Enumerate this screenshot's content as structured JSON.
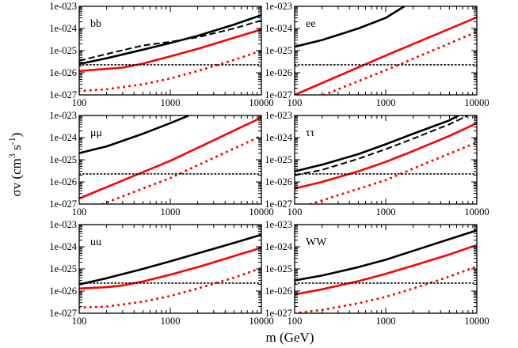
{
  "figure": {
    "xlabel": "m (GeV)",
    "ylabel_main": "σv (cm",
    "ylabel_exp1": "3",
    "ylabel_mid": " s",
    "ylabel_exp2": "-1",
    "ylabel_end": ")"
  },
  "axes": {
    "x_ticks": [
      {
        "value": 100,
        "label": "100"
      },
      {
        "value": 1000,
        "label": "1000"
      },
      {
        "value": 10000,
        "label": "10000"
      }
    ],
    "y_ticks": [
      {
        "value": 1e-27,
        "label": "1e-027"
      },
      {
        "value": 1e-26,
        "label": "1e-026"
      },
      {
        "value": 1e-25,
        "label": "1e-025"
      },
      {
        "value": 1e-24,
        "label": "1e-024"
      },
      {
        "value": 1e-23,
        "label": "1e-023"
      }
    ]
  },
  "chart_data": [
    {
      "type": "line",
      "title": "bb",
      "xscale": "log",
      "yscale": "log",
      "xlim": [
        100,
        10000
      ],
      "ylim": [
        1e-27,
        1e-23
      ],
      "xlabel": "m (GeV)",
      "ylabel": "σv (cm^3 s^-1)",
      "series": [
        {
          "name": "black solid",
          "color": "#000000",
          "dash": "solid",
          "x": [
            100,
            200,
            500,
            1000,
            2000,
            5000,
            10000
          ],
          "y": [
            2.5e-26,
            4.5e-26,
            1.1e-25,
            2.2e-25,
            4.7e-25,
            1.5e-24,
            4e-24
          ]
        },
        {
          "name": "black dashed",
          "color": "#000000",
          "dash": "dashed",
          "x": [
            100,
            200,
            500,
            1000,
            2000,
            5000,
            10000
          ],
          "y": [
            3.5e-26,
            7e-26,
            1.7e-25,
            2.5e-25,
            4e-25,
            1e-24,
            2.3e-24
          ]
        },
        {
          "name": "red solid",
          "color": "#ff0000",
          "dash": "solid",
          "x": [
            100,
            200,
            300,
            500,
            1000,
            2000,
            5000,
            10000
          ],
          "y": [
            1.2e-26,
            1.5e-26,
            1.7e-26,
            2.6e-26,
            5.5e-26,
            1.2e-25,
            3.8e-25,
            9e-25
          ]
        },
        {
          "name": "red dotted",
          "color": "#ff0000",
          "dash": "dotted",
          "x": [
            100,
            200,
            500,
            1000,
            2000,
            5000,
            10000
          ],
          "y": [
            1.5e-27,
            1.8e-27,
            3e-27,
            5.5e-27,
            1.2e-26,
            3.8e-26,
            1e-25
          ]
        },
        {
          "name": "black dotted",
          "color": "#000000",
          "dash": "dotted",
          "x": [
            100,
            10000
          ],
          "y": [
            2.3e-26,
            2.3e-26
          ]
        }
      ]
    },
    {
      "type": "line",
      "title": "ee",
      "xscale": "log",
      "yscale": "log",
      "xlim": [
        100,
        10000
      ],
      "ylim": [
        1e-27,
        1e-23
      ],
      "xlabel": "m (GeV)",
      "ylabel": "σv (cm^3 s^-1)",
      "series": [
        {
          "name": "black solid",
          "color": "#000000",
          "dash": "solid",
          "x": [
            100,
            200,
            500,
            1000,
            1600
          ],
          "y": [
            1.5e-25,
            3e-25,
            1e-24,
            3e-24,
            1e-23
          ]
        },
        {
          "name": "red solid",
          "color": "#ff0000",
          "dash": "solid",
          "x": [
            100,
            1000,
            10000
          ],
          "y": [
            1e-27,
            6e-26,
            3.2e-24
          ]
        },
        {
          "name": "red dotted",
          "color": "#ff0000",
          "dash": "dotted",
          "x": [
            210,
            1000,
            10000
          ],
          "y": [
            1e-27,
            1.3e-26,
            7e-25
          ]
        },
        {
          "name": "black dotted",
          "color": "#000000",
          "dash": "dotted",
          "x": [
            100,
            10000
          ],
          "y": [
            2.3e-26,
            2.3e-26
          ]
        }
      ]
    },
    {
      "type": "line",
      "title": "μμ",
      "xscale": "log",
      "yscale": "log",
      "xlim": [
        100,
        10000
      ],
      "ylim": [
        1e-27,
        1e-23
      ],
      "xlabel": "m (GeV)",
      "ylabel": "σv (cm^3 s^-1)",
      "series": [
        {
          "name": "black solid",
          "color": "#000000",
          "dash": "solid",
          "x": [
            100,
            200,
            500,
            1000,
            1600
          ],
          "y": [
            2e-25,
            4e-25,
            1.5e-24,
            4.5e-24,
            1e-23
          ]
        },
        {
          "name": "red solid",
          "color": "#ff0000",
          "dash": "solid",
          "x": [
            100,
            1000,
            10000
          ],
          "y": [
            1.8e-27,
            9e-26,
            8e-24
          ]
        },
        {
          "name": "red dotted",
          "color": "#ff0000",
          "dash": "dotted",
          "x": [
            180,
            1000,
            10000
          ],
          "y": [
            1e-27,
            1.5e-26,
            1.2e-24
          ]
        },
        {
          "name": "black dotted",
          "color": "#000000",
          "dash": "dotted",
          "x": [
            100,
            10000
          ],
          "y": [
            2.3e-26,
            2.3e-26
          ]
        }
      ]
    },
    {
      "type": "line",
      "title": "ττ",
      "xscale": "log",
      "yscale": "log",
      "xlim": [
        100,
        10000
      ],
      "ylim": [
        1e-27,
        1e-23
      ],
      "xlabel": "m (GeV)",
      "ylabel": "σv (cm^3 s^-1)",
      "series": [
        {
          "name": "black solid",
          "color": "#000000",
          "dash": "solid",
          "x": [
            100,
            200,
            500,
            1000,
            2000,
            5000,
            6300
          ],
          "y": [
            3e-26,
            6e-26,
            1.8e-25,
            5e-25,
            1.5e-24,
            6e-24,
            1e-23
          ]
        },
        {
          "name": "black dashed",
          "color": "#000000",
          "dash": "dashed",
          "x": [
            100,
            200,
            500,
            1000,
            2000,
            5000,
            8000
          ],
          "y": [
            2e-26,
            3.5e-26,
            1.1e-25,
            3e-25,
            9e-25,
            4e-24,
            1e-23
          ]
        },
        {
          "name": "red solid",
          "color": "#ff0000",
          "dash": "solid",
          "x": [
            100,
            200,
            500,
            1000,
            2000,
            5000,
            10000
          ],
          "y": [
            5e-27,
            1e-26,
            3e-26,
            8e-26,
            2.5e-25,
            1.2e-24,
            4.5e-24
          ]
        },
        {
          "name": "red dotted",
          "color": "#ff0000",
          "dash": "dotted",
          "x": [
            150,
            300,
            1000,
            3000,
            10000
          ],
          "y": [
            1e-27,
            2.5e-27,
            1.2e-26,
            8e-26,
            6e-25
          ]
        },
        {
          "name": "black dotted",
          "color": "#000000",
          "dash": "dotted",
          "x": [
            100,
            10000
          ],
          "y": [
            2.3e-26,
            2.3e-26
          ]
        }
      ]
    },
    {
      "type": "line",
      "title": "uu",
      "xscale": "log",
      "yscale": "log",
      "xlim": [
        100,
        10000
      ],
      "ylim": [
        1e-27,
        1e-23
      ],
      "xlabel": "m (GeV)",
      "ylabel": "σv (cm^3 s^-1)",
      "series": [
        {
          "name": "black solid",
          "color": "#000000",
          "dash": "solid",
          "x": [
            100,
            200,
            500,
            1000,
            2000,
            5000,
            10000
          ],
          "y": [
            2e-26,
            3.8e-26,
            1e-25,
            2.2e-25,
            5e-25,
            1.5e-24,
            3.5e-24
          ]
        },
        {
          "name": "red solid",
          "color": "#ff0000",
          "dash": "solid",
          "x": [
            100,
            200,
            300,
            500,
            1000,
            2000,
            5000,
            10000
          ],
          "y": [
            1.3e-26,
            1.5e-26,
            1.8e-26,
            2.7e-26,
            5.5e-26,
            1.2e-25,
            3.8e-25,
            9e-25
          ]
        },
        {
          "name": "red dotted",
          "color": "#ff0000",
          "dash": "dotted",
          "x": [
            100,
            200,
            500,
            1000,
            2000,
            5000,
            10000
          ],
          "y": [
            1.8e-27,
            2e-27,
            3.3e-27,
            6e-27,
            1.3e-26,
            4e-26,
            1.1e-25
          ]
        },
        {
          "name": "black dotted",
          "color": "#000000",
          "dash": "dotted",
          "x": [
            100,
            10000
          ],
          "y": [
            2.3e-26,
            2.3e-26
          ]
        }
      ]
    },
    {
      "type": "line",
      "title": "WW",
      "xscale": "log",
      "yscale": "log",
      "xlim": [
        100,
        10000
      ],
      "ylim": [
        1e-27,
        1e-23
      ],
      "xlabel": "m (GeV)",
      "ylabel": "σv (cm^3 s^-1)",
      "series": [
        {
          "name": "black solid",
          "color": "#000000",
          "dash": "solid",
          "x": [
            100,
            200,
            500,
            1000,
            2000,
            5000,
            10000
          ],
          "y": [
            3e-26,
            5e-26,
            1.2e-25,
            2.6e-25,
            6.5e-25,
            2.2e-24,
            5.5e-24
          ]
        },
        {
          "name": "red solid",
          "color": "#ff0000",
          "dash": "solid",
          "x": [
            100,
            200,
            500,
            1000,
            2000,
            5000,
            10000
          ],
          "y": [
            7e-27,
            1.2e-26,
            2.8e-26,
            6e-26,
            1.4e-25,
            4.5e-25,
            1.2e-24
          ]
        },
        {
          "name": "red dotted",
          "color": "#ff0000",
          "dash": "dotted",
          "x": [
            100,
            200,
            500,
            1000,
            2000,
            5000,
            10000
          ],
          "y": [
            1e-27,
            1.4e-27,
            2.8e-27,
            5.5e-27,
            1.3e-26,
            4.5e-26,
            1.3e-25
          ]
        },
        {
          "name": "black dotted",
          "color": "#000000",
          "dash": "dotted",
          "x": [
            100,
            10000
          ],
          "y": [
            2.3e-26,
            2.3e-26
          ]
        }
      ]
    }
  ]
}
